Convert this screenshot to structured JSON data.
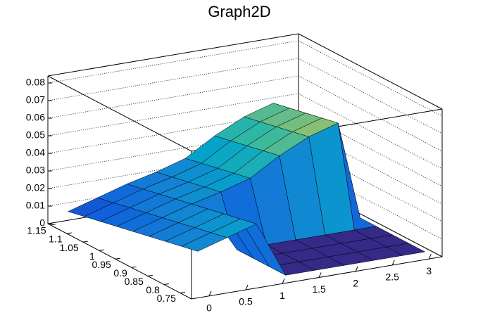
{
  "chart_data": {
    "type": "surface",
    "title": "Graph2D",
    "x": [
      0,
      0.4,
      0.8,
      1.2,
      1.6,
      2.0,
      2.4,
      2.8,
      3.1
    ],
    "y": [
      0.75,
      0.8,
      0.85,
      0.9,
      0.95,
      1.0,
      1.05,
      1.1,
      1.15
    ],
    "z": [
      [
        0.022,
        0.027,
        0.032,
        0,
        0,
        0,
        0,
        0,
        0
      ],
      [
        0.02,
        0.025,
        0.03,
        0,
        0,
        0,
        0,
        0,
        0
      ],
      [
        0.018,
        0.023,
        0.028,
        0,
        0,
        0,
        0,
        0,
        0
      ],
      [
        0.016,
        0.021,
        0.026,
        0,
        0,
        0,
        0,
        0,
        0
      ],
      [
        0.014,
        0.019,
        0.024,
        0.028,
        0.033,
        0.043,
        0.051,
        0.056,
        0
      ],
      [
        0.012,
        0.017,
        0.022,
        0.026,
        0.031,
        0.041,
        0.049,
        0.054,
        0
      ],
      [
        0.01,
        0.015,
        0.02,
        0.024,
        0.029,
        0.039,
        0.047,
        0.052,
        0
      ],
      [
        0.008,
        0.013,
        0.018,
        0.022,
        0.027,
        0.037,
        0.045,
        0.05,
        0
      ],
      [
        0.006,
        0.011,
        0.016,
        0.02,
        0.025,
        0.035,
        0.043,
        0.048,
        0
      ]
    ],
    "xlim": [
      -0.24,
      3.18
    ],
    "ylim": [
      0.715,
      1.158
    ],
    "zlim": [
      0,
      0.084
    ],
    "xticks": [
      0,
      0.5,
      1,
      1.5,
      2,
      2.5,
      3
    ],
    "yticks": [
      0.75,
      0.8,
      0.85,
      0.9,
      0.95,
      1,
      1.05,
      1.1,
      1.15
    ],
    "zticks": [
      0,
      0.01,
      0.02,
      0.03,
      0.04,
      0.05,
      0.06,
      0.07,
      0.08
    ],
    "grid": true,
    "palette": [
      "#352a87",
      "#0f5cdd",
      "#1481d4",
      "#06a4ca",
      "#2eb7a4",
      "#87bf77",
      "#d1bb59",
      "#fec832",
      "#f9fb0e"
    ]
  }
}
